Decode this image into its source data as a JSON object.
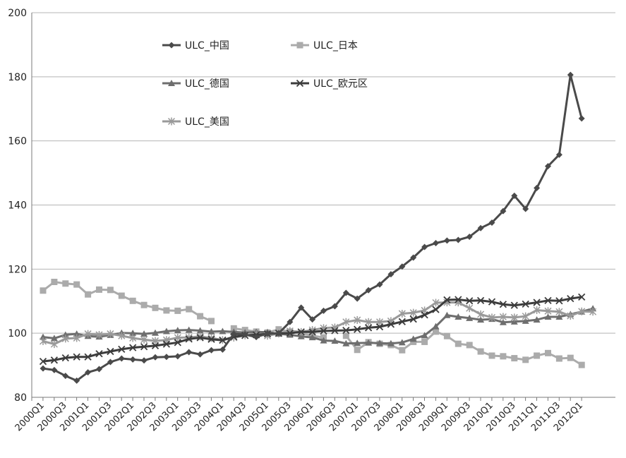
{
  "chart_data": {
    "type": "line",
    "title": "",
    "xlabel": "",
    "ylabel": "",
    "ylim": [
      80,
      200
    ],
    "yticks": [
      80,
      100,
      120,
      140,
      160,
      180,
      200
    ],
    "grid": "horizontal",
    "legend_position": "top-left inside",
    "x": [
      "2000Q1",
      "2000Q2",
      "2000Q3",
      "2000Q4",
      "2001Q1",
      "2001Q2",
      "2001Q3",
      "2001Q4",
      "2002Q1",
      "2002Q2",
      "2002Q3",
      "2002Q4",
      "2003Q1",
      "2003Q2",
      "2003Q3",
      "2003Q4",
      "2004Q1",
      "2004Q2",
      "2004Q3",
      "2004Q4",
      "2005Q1",
      "2005Q2",
      "2005Q3",
      "2005Q4",
      "2006Q1",
      "2006Q2",
      "2006Q3",
      "2006Q4",
      "2007Q1",
      "2007Q2",
      "2007Q3",
      "2007Q4",
      "2008Q1",
      "2008Q2",
      "2008Q3",
      "2008Q4",
      "2009Q1",
      "2009Q2",
      "2009Q3",
      "2009Q4",
      "2010Q1",
      "2010Q2",
      "2010Q3",
      "2010Q4",
      "2011Q1",
      "2011Q2",
      "2011Q3",
      "2011Q4",
      "2012Q1",
      "2012Q2"
    ],
    "x_tick_labels": [
      "2000Q1",
      "2000Q3",
      "2001Q1",
      "2001Q3",
      "2002Q1",
      "2002Q3",
      "2003Q1",
      "2003Q3",
      "2004Q1",
      "2004Q3",
      "2005Q1",
      "2005Q3",
      "2006Q1",
      "2006Q3",
      "2007Q1",
      "2007Q3",
      "2008Q1",
      "2008Q3",
      "2009Q1",
      "2009Q3",
      "2010Q1",
      "2010Q3",
      "2011Q1",
      "2011Q3",
      "2012Q1"
    ],
    "series": [
      {
        "name": "ULC_中国",
        "color": "#4a4a4a",
        "marker": "diamond",
        "values": [
          89,
          88.5,
          86.7,
          85.2,
          87.8,
          88.8,
          91,
          92.1,
          91.8,
          91.5,
          92.5,
          92.6,
          92.8,
          94.1,
          93.4,
          94.7,
          94.9,
          99.8,
          99.6,
          98.8,
          99.9,
          100,
          103.5,
          108,
          104.3,
          107,
          108.4,
          112.6,
          110.8,
          113.4,
          115.2,
          118.4,
          120.8,
          123.6,
          126.9,
          128.1,
          128.9,
          129.1,
          130.1,
          132.8,
          134.5,
          138.1,
          142.9,
          138.8,
          145.3,
          152.1,
          155.7,
          180.6,
          167,
          null
        ]
      },
      {
        "name": "ULC_日本",
        "color": "#ababab",
        "marker": "square",
        "values": [
          113.3,
          116,
          115.5,
          115.2,
          112.1,
          113.6,
          113.5,
          111.7,
          110.1,
          108.8,
          107.9,
          107.1,
          107,
          107.5,
          105.3,
          103.8,
          null,
          101.5,
          101,
          100.5,
          100.2,
          101.2,
          100.5,
          100,
          99.2,
          98.7,
          null,
          99.2,
          94.8,
          97.2,
          96.7,
          96.3,
          94.7,
          97.3,
          97.3,
          100.5,
          99.1,
          96.7,
          96.3,
          94.3,
          93,
          92.8,
          92.2,
          91.7,
          93,
          93.8,
          92.1,
          92.3,
          90.1,
          null
        ]
      },
      {
        "name": "ULC_德国",
        "color": "#6e6e6e",
        "marker": "triangle",
        "values": [
          98.8,
          98.4,
          99.5,
          99.8,
          99.1,
          98.9,
          99.4,
          100.1,
          100,
          99.8,
          100.1,
          100.6,
          100.9,
          101,
          100.8,
          100.5,
          100.6,
          100.4,
          100.2,
          100.4,
          100.3,
          99.8,
          99.5,
          99,
          98.7,
          97.7,
          97.6,
          96.8,
          96.9,
          97,
          96.9,
          96.8,
          97.1,
          98.2,
          99.3,
          102.1,
          105.6,
          105.1,
          104.7,
          104.2,
          104.4,
          103.4,
          103.6,
          103.8,
          104.2,
          105.1,
          105.1,
          105.9,
          106.7,
          107.7
        ]
      },
      {
        "name": "ULC_欧元区",
        "color": "#3c3c3c",
        "marker": "x",
        "values": [
          91.2,
          91.6,
          92.3,
          92.6,
          92.6,
          93.6,
          94.3,
          95,
          95.5,
          95.8,
          96.1,
          96.6,
          97.1,
          98.2,
          98.6,
          98.1,
          97.8,
          98.9,
          99.3,
          99.5,
          99.8,
          100,
          100,
          100.4,
          100.4,
          100.7,
          100.8,
          100.9,
          101.2,
          101.7,
          102,
          102.8,
          103.6,
          104.4,
          105.7,
          107.4,
          110.4,
          110.5,
          110.1,
          110.2,
          109.8,
          109,
          108.7,
          109.1,
          109.6,
          110.2,
          110.1,
          110.8,
          111.3,
          null
        ]
      },
      {
        "name": "ULC_美国",
        "color": "#9a9a9a",
        "marker": "star",
        "values": [
          97.5,
          96.6,
          98.3,
          98.5,
          99.8,
          99.5,
          99.8,
          99.2,
          98.5,
          98,
          97.6,
          97.9,
          98.6,
          98.7,
          99,
          98.5,
          97.9,
          98.6,
          99.3,
          99.8,
          99.2,
          99.9,
          100.7,
          100.4,
          101,
          101.6,
          101.8,
          103.5,
          104.1,
          103.5,
          103.5,
          103.8,
          106.1,
          106.4,
          107.1,
          109.5,
          109.6,
          109.6,
          107.8,
          105.9,
          104.9,
          105.1,
          104.9,
          105.3,
          107.2,
          106.9,
          106.7,
          105.4,
          106.8,
          106.7
        ]
      }
    ]
  }
}
